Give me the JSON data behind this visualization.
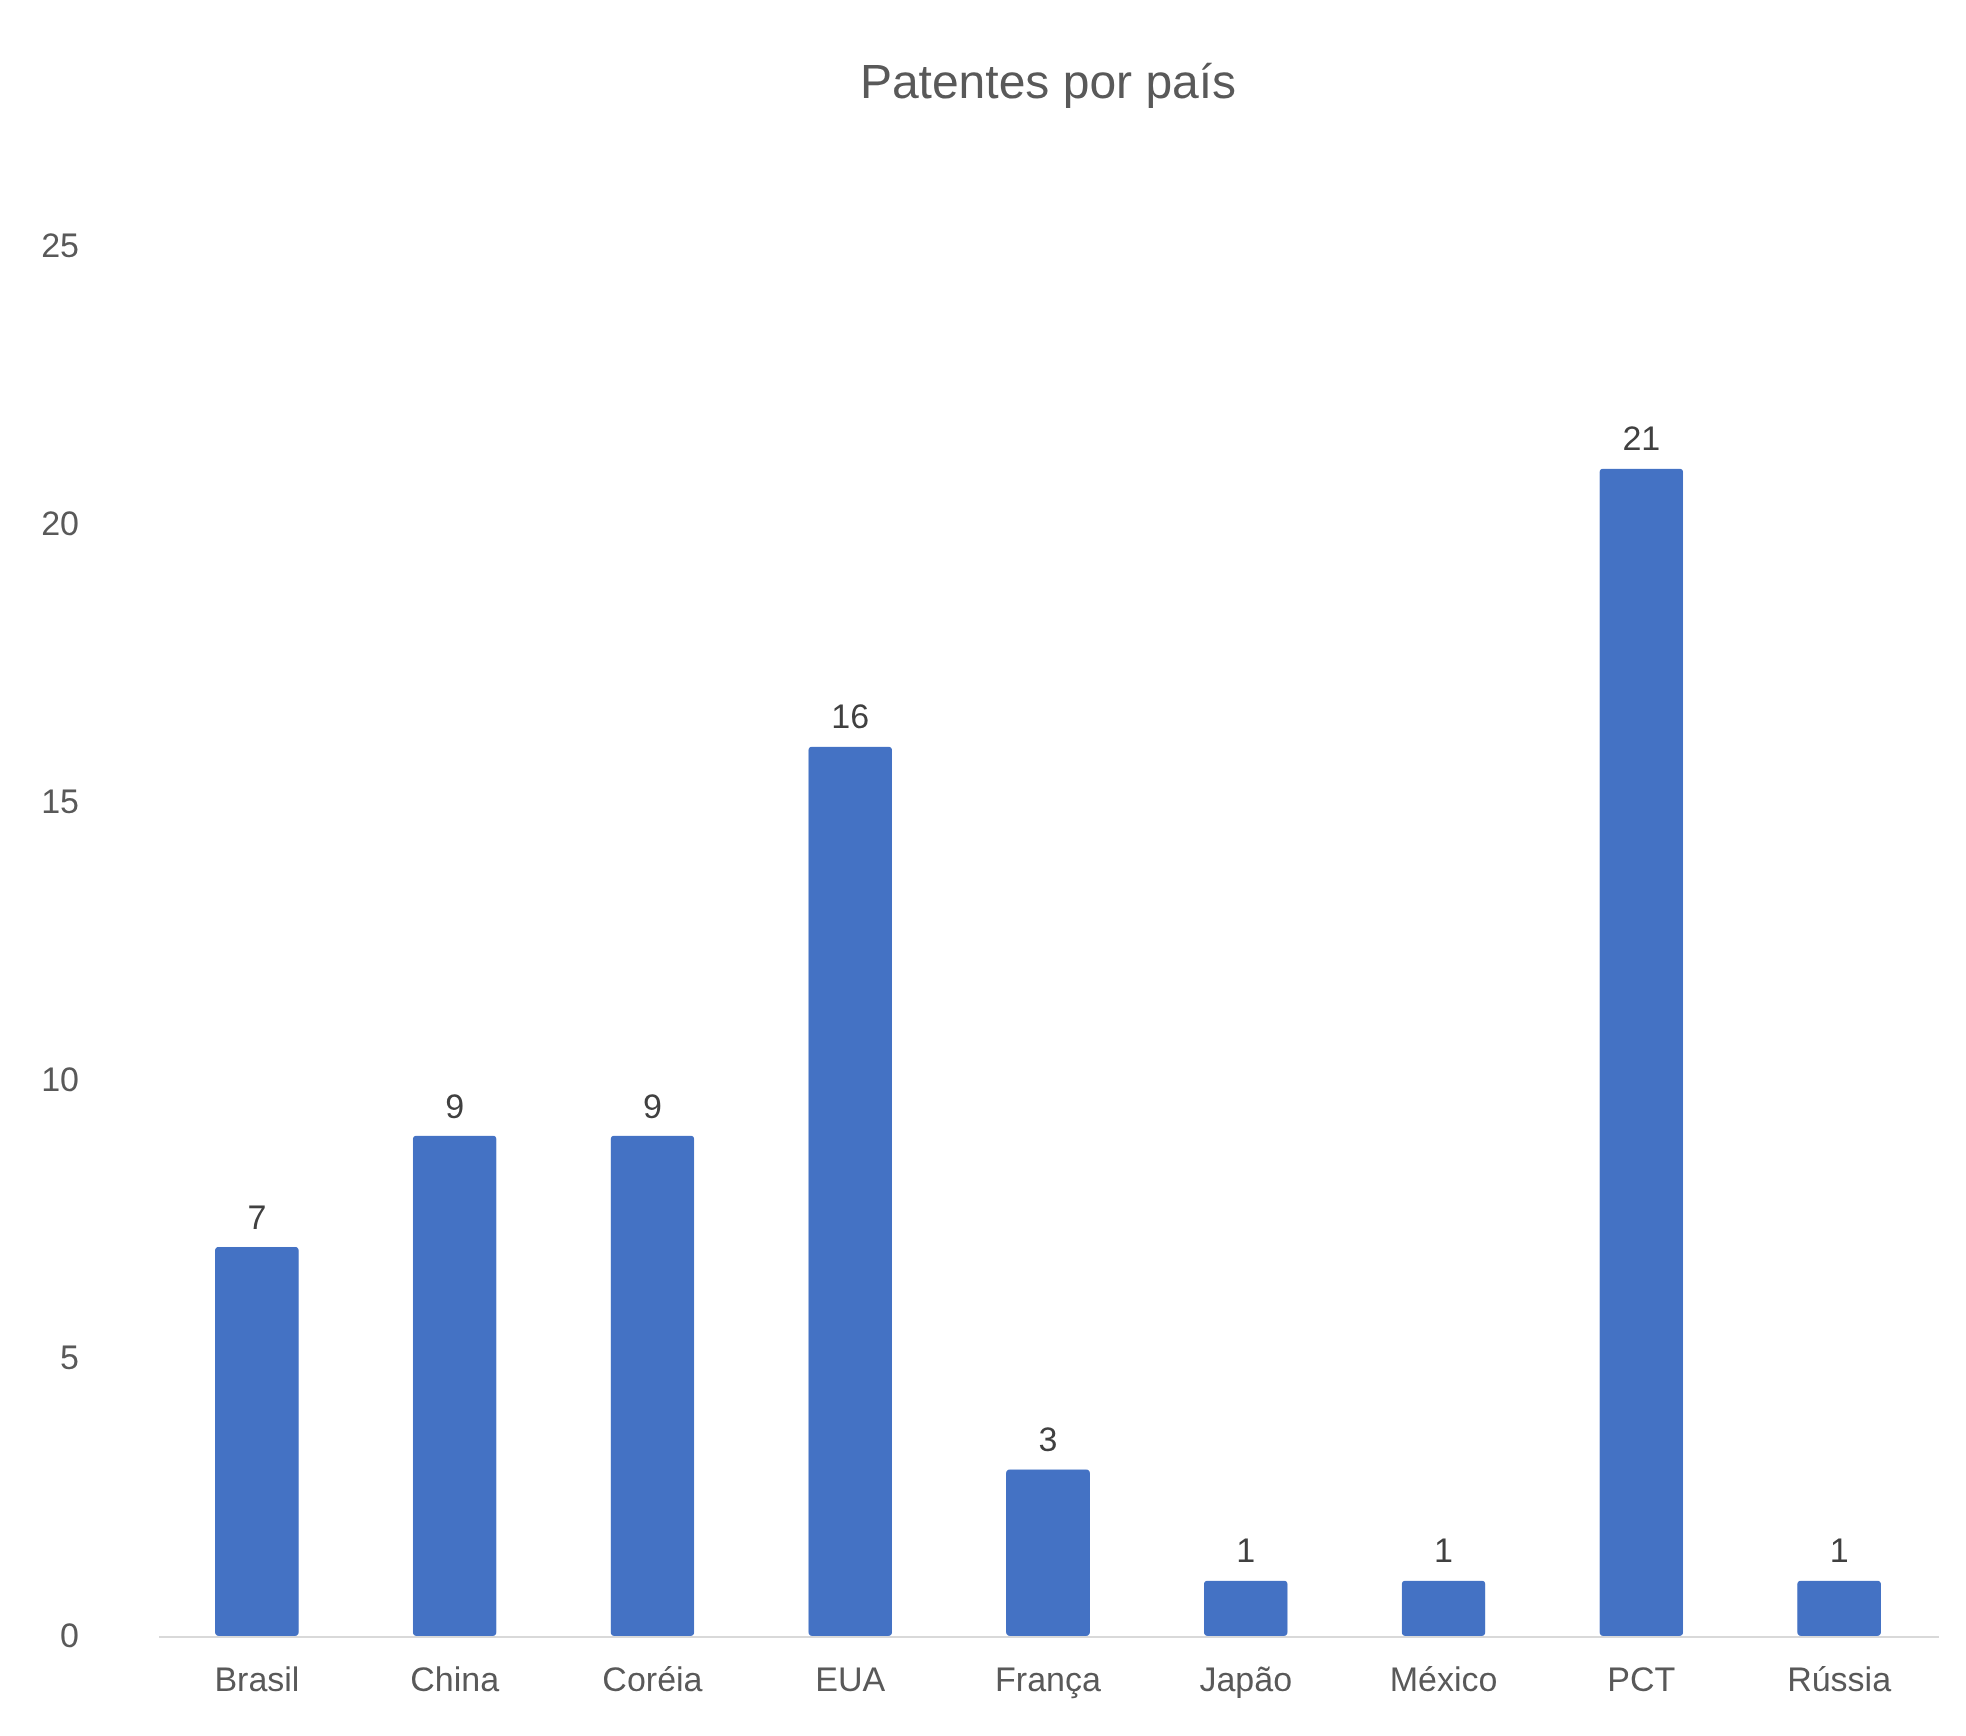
{
  "chart_data": {
    "type": "bar",
    "title": "Patentes por país",
    "categories": [
      "Brasil",
      "China",
      "Coréia",
      "EUA",
      "França",
      "Japão",
      "México",
      "PCT",
      "Rússia"
    ],
    "values": [
      7,
      9,
      9,
      16,
      3,
      1,
      1,
      21,
      1
    ],
    "color": "#4472c4",
    "ylim": [
      0,
      25
    ],
    "yticks": [
      0,
      5,
      10,
      15,
      20,
      25
    ],
    "data_labels": true
  }
}
